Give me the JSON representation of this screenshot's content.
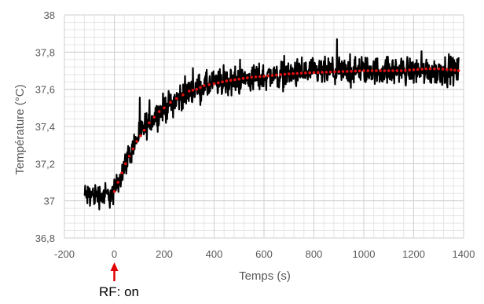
{
  "chart_data": {
    "type": "scatter",
    "title": "",
    "xlabel": "Temps (s)",
    "ylabel": "Température (°C)",
    "xlim": [
      -200,
      1400
    ],
    "ylim": [
      36.8,
      38
    ],
    "x_ticks": [
      -200,
      0,
      200,
      400,
      600,
      800,
      1000,
      1200,
      1400
    ],
    "y_ticks": [
      36.8,
      37,
      37.2,
      37.4,
      37.6,
      37.8,
      38
    ],
    "x_tick_labels": [
      "-200",
      "0",
      "200",
      "400",
      "600",
      "800",
      "1000",
      "1200",
      "1400"
    ],
    "y_tick_labels": [
      "36,8",
      "37",
      "37,2",
      "37,4",
      "37,6",
      "37,8",
      "38"
    ],
    "grid": true,
    "series": [
      {
        "kind": "measured",
        "color": "#000000",
        "x_range": [
          -120,
          1380
        ],
        "x_step": 1.5,
        "envelope": [
          {
            "x": -120,
            "y": 37.03,
            "spread": 0.1
          },
          {
            "x": -10,
            "y": 37.03,
            "spread": 0.1
          },
          {
            "x": 0,
            "y": 37.05,
            "spread": 0.1
          },
          {
            "x": 50,
            "y": 37.22,
            "spread": 0.1
          },
          {
            "x": 100,
            "y": 37.36,
            "spread": 0.11
          },
          {
            "x": 150,
            "y": 37.44,
            "spread": 0.11
          },
          {
            "x": 200,
            "y": 37.5,
            "spread": 0.11
          },
          {
            "x": 300,
            "y": 37.59,
            "spread": 0.11
          },
          {
            "x": 400,
            "y": 37.63,
            "spread": 0.11
          },
          {
            "x": 600,
            "y": 37.67,
            "spread": 0.11
          },
          {
            "x": 800,
            "y": 37.69,
            "spread": 0.11
          },
          {
            "x": 1000,
            "y": 37.7,
            "spread": 0.11
          },
          {
            "x": 1380,
            "y": 37.7,
            "spread": 0.11
          }
        ]
      },
      {
        "kind": "fit",
        "color": "#e01010",
        "points": [
          [
            0,
            37.05
          ],
          [
            15,
            37.1
          ],
          [
            30,
            37.15
          ],
          [
            45,
            37.2
          ],
          [
            60,
            37.24
          ],
          [
            75,
            37.28
          ],
          [
            90,
            37.32
          ],
          [
            105,
            37.35
          ],
          [
            120,
            37.38
          ],
          [
            140,
            37.42
          ],
          [
            160,
            37.45
          ],
          [
            180,
            37.48
          ],
          [
            200,
            37.5
          ],
          [
            225,
            37.53
          ],
          [
            250,
            37.55
          ],
          [
            275,
            37.57
          ],
          [
            300,
            37.59
          ],
          [
            330,
            37.6
          ],
          [
            360,
            37.62
          ],
          [
            400,
            37.63
          ],
          [
            450,
            37.645
          ],
          [
            500,
            37.655
          ],
          [
            550,
            37.665
          ],
          [
            600,
            37.67
          ],
          [
            650,
            37.677
          ],
          [
            700,
            37.683
          ],
          [
            750,
            37.687
          ],
          [
            800,
            37.69
          ],
          [
            850,
            37.692
          ],
          [
            900,
            37.695
          ],
          [
            950,
            37.697
          ],
          [
            1000,
            37.7
          ],
          [
            1050,
            37.7
          ],
          [
            1100,
            37.7
          ],
          [
            1150,
            37.7
          ],
          [
            1200,
            37.705
          ],
          [
            1250,
            37.71
          ],
          [
            1300,
            37.71
          ],
          [
            1350,
            37.705
          ],
          [
            1380,
            37.7
          ]
        ]
      }
    ]
  },
  "annotation": {
    "text": "RF: on",
    "arrow_x": 0,
    "arrow_color": "#e00000"
  }
}
